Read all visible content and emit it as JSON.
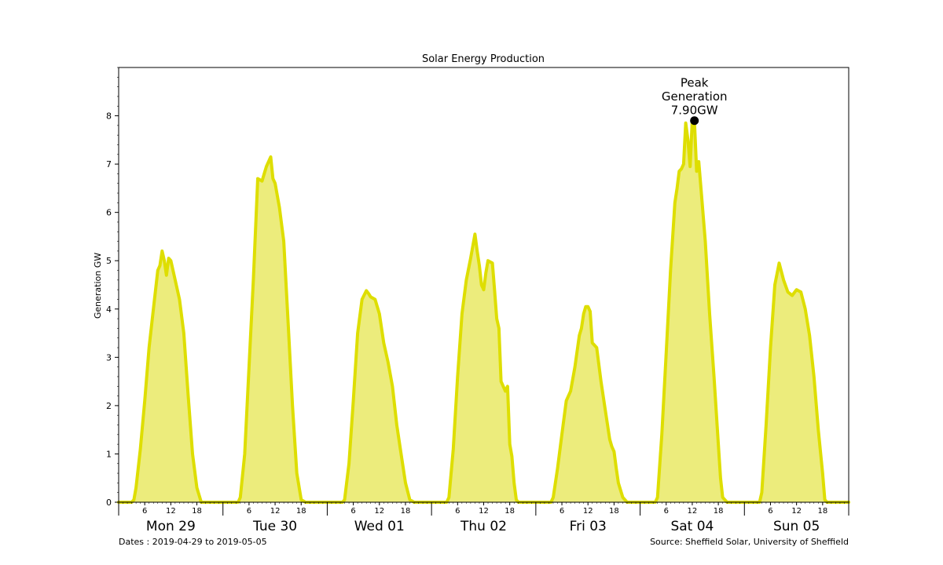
{
  "chart_data": {
    "type": "area",
    "title": "Solar Energy Production",
    "xlabel": "",
    "ylabel": "Generation GW",
    "ylim": [
      0,
      9
    ],
    "yticks": [
      0,
      1,
      2,
      3,
      4,
      5,
      6,
      7,
      8
    ],
    "xlim_hours": [
      0,
      168
    ],
    "minor_tick_labels": [
      "6",
      "12",
      "18"
    ],
    "days": [
      "Mon 29",
      "Tue 30",
      "Wed 01",
      "Thu 02",
      "Fri 03",
      "Sat 04",
      "Sun 05"
    ],
    "series": [
      {
        "x": [
          0,
          2,
          3,
          3.5,
          4,
          5,
          6,
          7,
          8,
          9,
          9.5,
          10,
          10.5,
          11,
          11.5,
          12,
          13,
          14,
          15,
          16,
          17,
          18,
          19,
          20,
          20.5,
          21,
          22,
          23,
          24,
          27.5,
          28,
          29,
          30,
          31,
          32,
          33,
          33.5,
          34,
          35,
          35.5,
          36,
          37,
          38,
          39,
          40,
          41,
          42,
          43,
          43.5,
          44,
          48,
          48,
          51.5,
          52,
          53,
          54,
          55,
          56,
          57,
          57.5,
          58,
          59,
          60,
          61,
          62,
          63,
          64,
          65,
          66,
          67,
          68,
          69,
          69.5,
          70,
          72,
          72,
          75.5,
          76,
          77,
          78,
          79,
          80,
          81,
          82,
          82.5,
          83,
          83.5,
          84,
          84.5,
          85,
          86,
          86.5,
          87,
          87.5,
          88,
          89,
          89.5,
          90,
          90.5,
          91,
          91.5,
          92,
          96,
          96,
          99.5,
          100,
          101,
          102,
          103,
          104,
          105,
          106,
          106.5,
          107,
          107.5,
          108,
          108.5,
          109,
          110,
          111,
          112,
          113,
          113.5,
          114,
          114.5,
          115,
          116,
          117,
          120,
          120,
          123.5,
          124,
          125,
          126,
          127,
          128,
          128.5,
          129,
          129.5,
          130,
          130.5,
          131,
          131.5,
          132,
          132.5,
          133,
          133.5,
          134,
          135,
          136,
          137,
          138,
          138.5,
          139,
          140,
          144,
          144,
          147.5,
          148,
          149,
          150,
          151,
          152,
          153,
          154,
          155,
          156,
          157,
          158,
          159,
          160,
          161,
          162,
          162.5,
          163,
          168
        ],
        "y": [
          0,
          0,
          0,
          0.05,
          0.3,
          1.1,
          2.1,
          3.2,
          4.0,
          4.8,
          4.9,
          5.2,
          5.0,
          4.7,
          5.05,
          5.0,
          4.6,
          4.2,
          3.5,
          2.2,
          1.0,
          0.3,
          0,
          0,
          0,
          0,
          0,
          0,
          0,
          0,
          0.1,
          1.0,
          2.8,
          4.6,
          6.7,
          6.65,
          6.8,
          6.95,
          7.15,
          6.7,
          6.6,
          6.1,
          5.4,
          3.7,
          2.0,
          0.6,
          0.05,
          0,
          0,
          0,
          0,
          0,
          0,
          0.05,
          0.8,
          2.1,
          3.5,
          4.2,
          4.38,
          4.32,
          4.25,
          4.2,
          3.9,
          3.3,
          2.9,
          2.4,
          1.6,
          1.0,
          0.4,
          0.05,
          0,
          0,
          0,
          0,
          0,
          0,
          0,
          0.1,
          1.1,
          2.6,
          3.9,
          4.6,
          5.05,
          5.55,
          5.2,
          4.9,
          4.5,
          4.4,
          4.75,
          5.0,
          4.95,
          4.4,
          3.8,
          3.6,
          2.5,
          2.3,
          2.4,
          1.2,
          0.95,
          0.4,
          0.05,
          0,
          0,
          0,
          0,
          0.1,
          0.7,
          1.4,
          2.1,
          2.3,
          2.8,
          3.45,
          3.6,
          3.9,
          4.05,
          4.05,
          3.95,
          3.3,
          3.2,
          2.5,
          1.9,
          1.3,
          1.15,
          1.05,
          0.7,
          0.4,
          0.1,
          0,
          0,
          0,
          0,
          0.1,
          1.4,
          3.1,
          4.8,
          6.2,
          6.5,
          6.85,
          6.9,
          7.0,
          7.85,
          7.5,
          6.95,
          7.9,
          7.88,
          6.85,
          7.05,
          6.5,
          5.4,
          3.9,
          2.6,
          1.2,
          0.5,
          0.1,
          0,
          0,
          0,
          0,
          0.2,
          1.6,
          3.2,
          4.5,
          4.95,
          4.6,
          4.35,
          4.28,
          4.4,
          4.35,
          4.0,
          3.45,
          2.6,
          1.5,
          0.6,
          0.05,
          0,
          0
        ]
      }
    ],
    "annotations": [
      {
        "lines": [
          "Peak",
          "Generation",
          "7.90GW"
        ],
        "x": 132.5,
        "y": 7.9
      }
    ],
    "grid": false,
    "legend": "none",
    "fill_color": "#ecec7c",
    "line_color": "#dede00",
    "footer_left": "Dates : 2019-04-29 to 2019-05-05",
    "footer_right": "Source: Sheffield Solar, University of Sheffield"
  }
}
